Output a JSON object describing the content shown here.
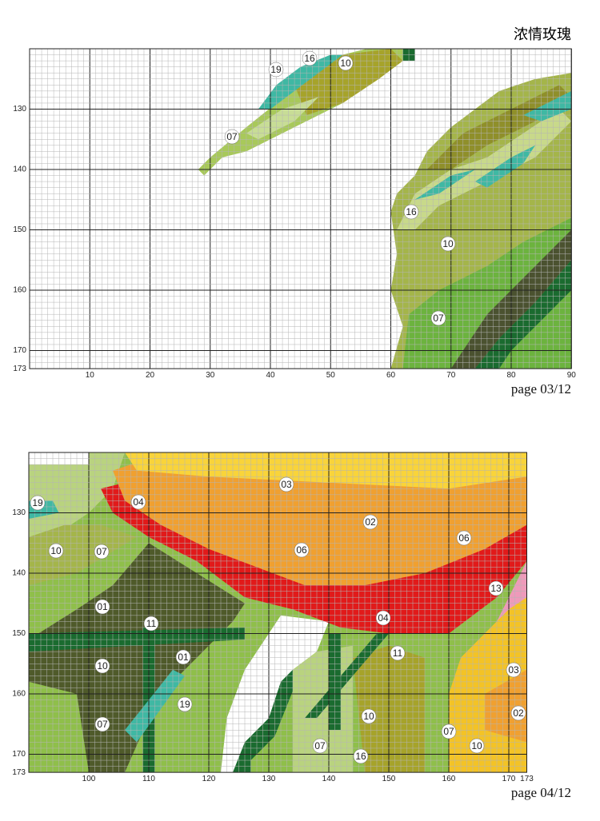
{
  "header": {
    "title": "浓情玫瑰"
  },
  "pages": [
    {
      "footer": "page 03/12",
      "x_labels": [
        "10",
        "20",
        "30",
        "40",
        "50",
        "60",
        "70",
        "80",
        "90"
      ],
      "y_labels": [
        "130",
        "140",
        "150",
        "160",
        "170",
        "173"
      ],
      "symbols": [
        "19",
        "16",
        "10",
        "07",
        "16",
        "10",
        "07"
      ]
    },
    {
      "footer": "page 04/12",
      "x_labels": [
        "100",
        "110",
        "120",
        "130",
        "140",
        "150",
        "160",
        "170",
        "173"
      ],
      "y_labels": [
        "130",
        "140",
        "150",
        "160",
        "170",
        "173"
      ],
      "symbols": [
        "19",
        "04",
        "03",
        "02",
        "06",
        "06",
        "10",
        "07",
        "01",
        "11",
        "13",
        "04",
        "11",
        "01",
        "10",
        "03",
        "19",
        "02",
        "10",
        "07",
        "07",
        "10",
        "07",
        "16"
      ]
    }
  ]
}
